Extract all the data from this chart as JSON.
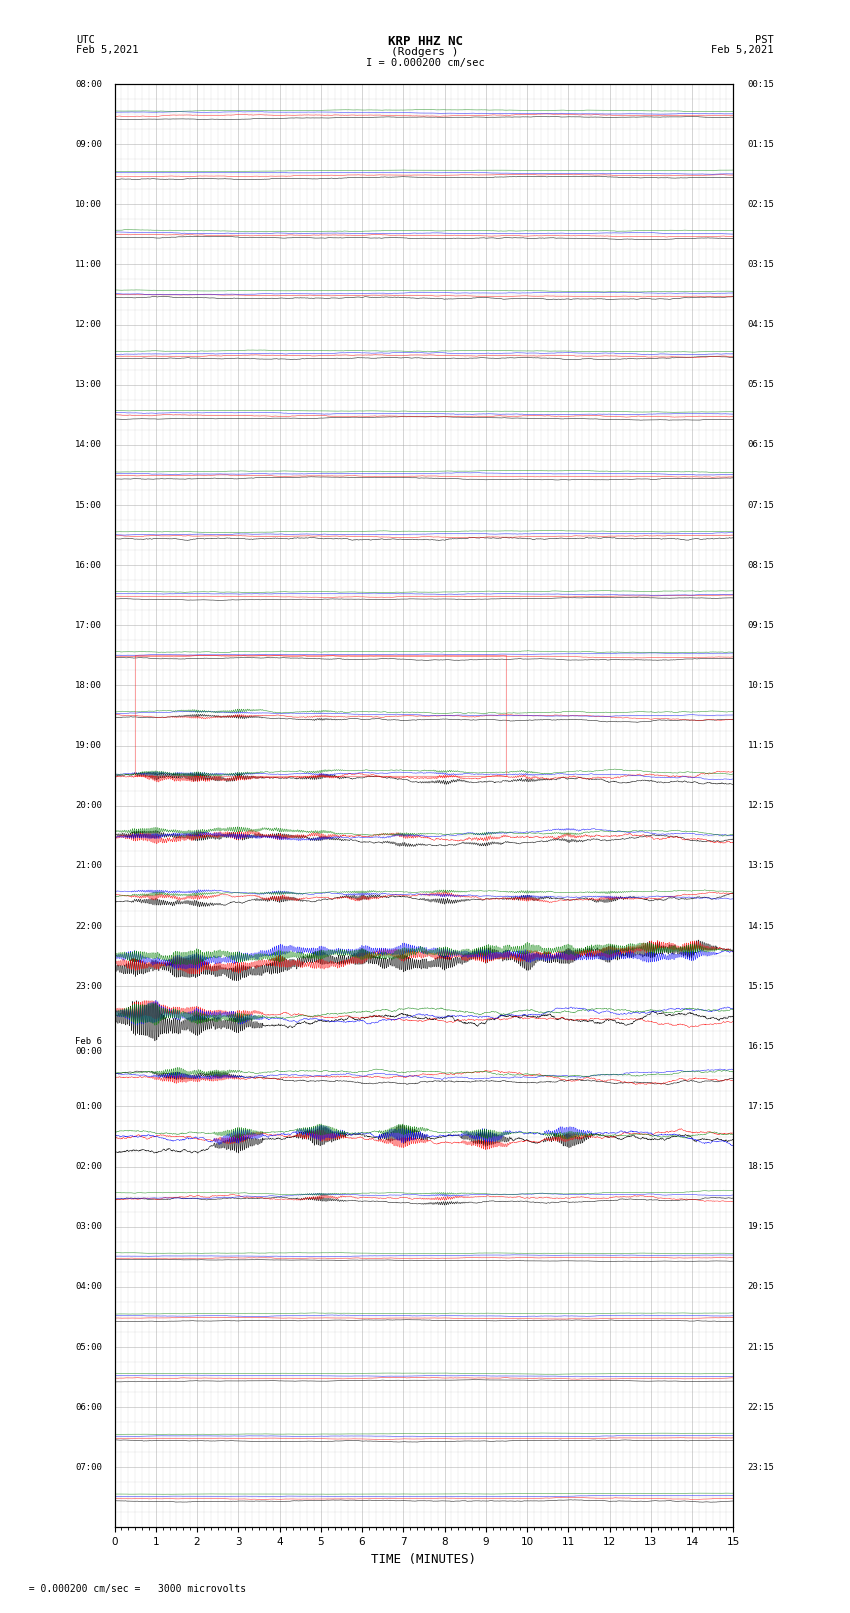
{
  "title_line1": "KRP HHZ NC",
  "title_line2": "(Rodgers )",
  "scale_label": "I = 0.000200 cm/sec",
  "bottom_label": "= 0.000200 cm/sec =   3000 microvolts",
  "left_label_top": "UTC",
  "left_label_date": "Feb 5,2021",
  "right_label_top": "PST",
  "right_label_date": "Feb 5,2021",
  "xlabel": "TIME (MINUTES)",
  "xmin": 0,
  "xmax": 15,
  "xticks": [
    0,
    1,
    2,
    3,
    4,
    5,
    6,
    7,
    8,
    9,
    10,
    11,
    12,
    13,
    14,
    15
  ],
  "left_ytick_labels": [
    "08:00",
    "09:00",
    "10:00",
    "11:00",
    "12:00",
    "13:00",
    "14:00",
    "15:00",
    "16:00",
    "17:00",
    "18:00",
    "19:00",
    "20:00",
    "21:00",
    "22:00",
    "23:00",
    "Feb 6\n00:00",
    "01:00",
    "02:00",
    "03:00",
    "04:00",
    "05:00",
    "06:00",
    "07:00",
    ""
  ],
  "right_ytick_labels": [
    "00:15",
    "01:15",
    "02:15",
    "03:15",
    "04:15",
    "05:15",
    "06:15",
    "07:15",
    "08:15",
    "09:15",
    "10:15",
    "11:15",
    "12:15",
    "13:15",
    "14:15",
    "15:15",
    "16:15",
    "17:15",
    "18:15",
    "19:15",
    "20:15",
    "21:15",
    "22:15",
    "23:15",
    ""
  ],
  "num_rows": 24,
  "bg_color": "#ffffff",
  "grid_color": "#aaaaaa",
  "signal_colors": [
    "#000000",
    "#ff0000",
    "#0000ff",
    "#008000"
  ],
  "fig_width": 8.5,
  "fig_height": 16.13
}
